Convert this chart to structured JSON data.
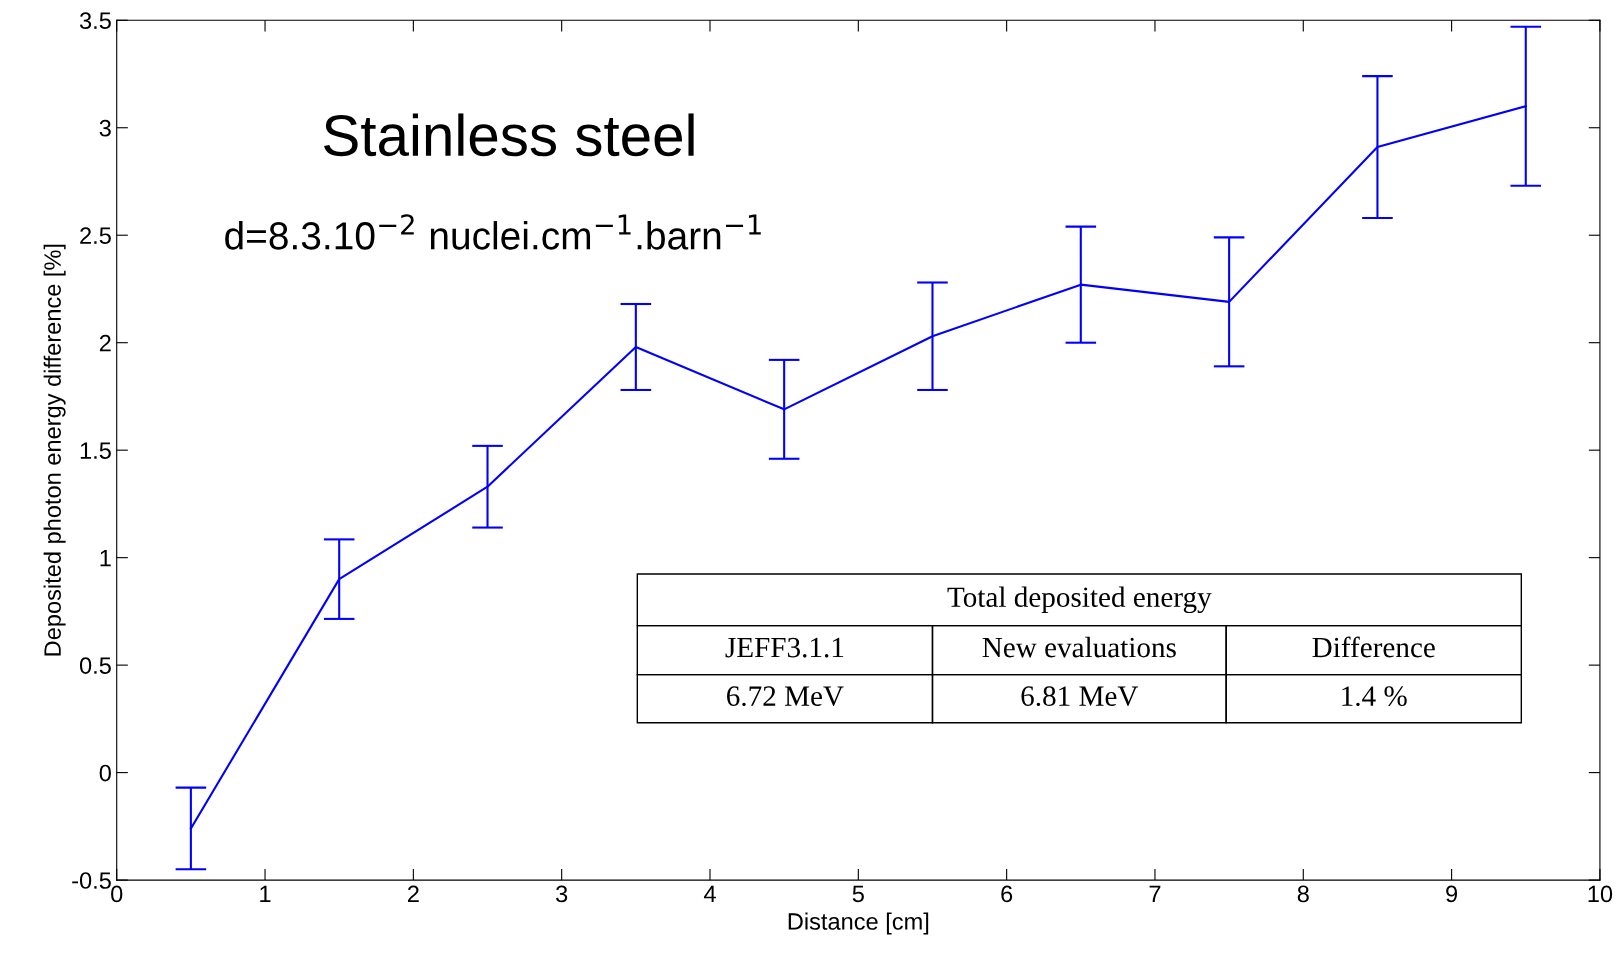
{
  "chart_data": {
    "type": "line",
    "xlabel": "Distance [cm]",
    "ylabel": "Deposited photon energy difference [%]",
    "x": [
      0.5,
      1.5,
      2.5,
      3.5,
      4.5,
      5.5,
      6.5,
      7.5,
      8.5,
      9.5
    ],
    "series": [
      {
        "color": "#0000ff",
        "values": [
          -0.26,
          0.9,
          1.33,
          1.98,
          1.69,
          2.03,
          2.27,
          2.19,
          2.91,
          3.1
        ],
        "errors": [
          0.19,
          0.185,
          0.19,
          0.2,
          0.23,
          0.25,
          0.27,
          0.3,
          0.33,
          0.37
        ]
      }
    ],
    "xlim": [
      0,
      10
    ],
    "ylim": [
      -0.5,
      3.5
    ],
    "xticks": [
      0,
      1,
      2,
      3,
      4,
      5,
      6,
      7,
      8,
      9,
      10
    ],
    "yticks": [
      -0.5,
      0,
      0.5,
      1,
      1.5,
      2,
      2.5,
      3,
      3.5
    ],
    "grid": false,
    "marker": "none",
    "line_style": "solid",
    "annotations": [
      "Stainless steel",
      "d=8.3.10$^{−2}$ nuclei.cm$^{−1}$.barn$^{−1}$",
      "Total deposited energy",
      "JEFF3.1.1",
      "New evaluations",
      "Difference",
      "6.72 MeV",
      "6.81 MeV",
      "1.4 %"
    ]
  }
}
